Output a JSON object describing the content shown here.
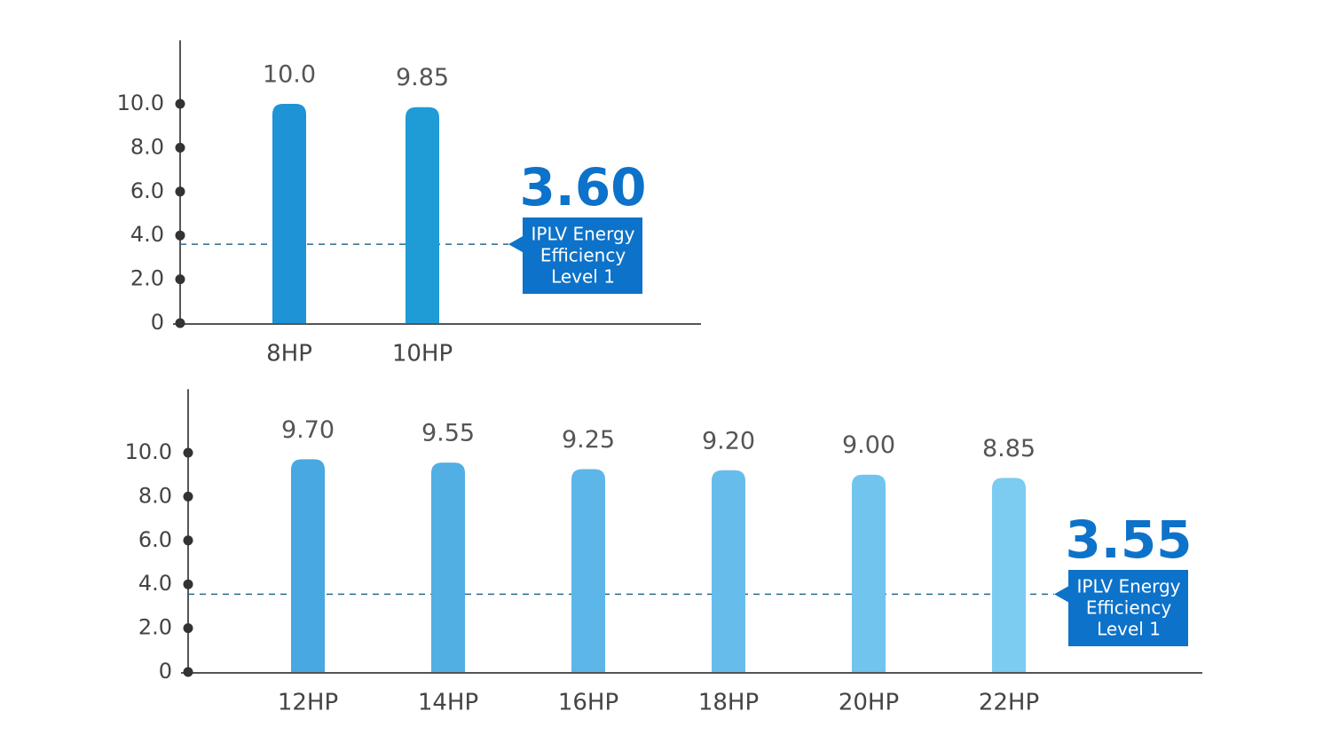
{
  "chart_data": [
    {
      "type": "bar",
      "categories": [
        "8HP",
        "10HP"
      ],
      "values": [
        10,
        9.85
      ],
      "value_labels": [
        "10.0",
        "9.85"
      ],
      "colors": [
        "#1e93d6",
        "#1f9bd6"
      ],
      "ylim": [
        0,
        12.9
      ],
      "yticks": [
        0,
        {
          "value": 2,
          "label": "2.0"
        },
        {
          "value": 4,
          "label": "4.0"
        },
        {
          "value": 6,
          "label": "6.0"
        },
        {
          "value": 8,
          "label": "8.0"
        },
        {
          "value": 10,
          "label": "10.0"
        }
      ],
      "reference": {
        "value": 3.6,
        "label": "3.60",
        "note_lines": [
          "IPLV Energy",
          "Efficiency",
          "Level 1"
        ],
        "color": "#0d72c9"
      }
    },
    {
      "type": "bar",
      "categories": [
        "12HP",
        "14HP",
        "16HP",
        "18HP",
        "20HP",
        "22HP"
      ],
      "values": [
        9.7,
        9.55,
        9.25,
        9.2,
        9,
        8.85
      ],
      "value_labels": [
        "9.70",
        "9.55",
        "9.25",
        "9.20",
        "9.00",
        "8.85"
      ],
      "colors": [
        "#48a8e1",
        "#52afe4",
        "#5cb6e8",
        "#66bdeb",
        "#70c4ee",
        "#7ccbf1"
      ],
      "ylim": [
        0,
        12.9
      ],
      "yticks": [
        0,
        {
          "value": 2,
          "label": "2.0"
        },
        {
          "value": 4,
          "label": "4.0"
        },
        {
          "value": 6,
          "label": "6.0"
        },
        {
          "value": 8,
          "label": "8.0"
        },
        {
          "value": 10,
          "label": "10.0"
        }
      ],
      "reference": {
        "value": 3.55,
        "label": "3.55",
        "note_lines": [
          "IPLV Energy",
          "Efficiency",
          "Level 1"
        ],
        "color": "#0d72c9"
      }
    }
  ]
}
